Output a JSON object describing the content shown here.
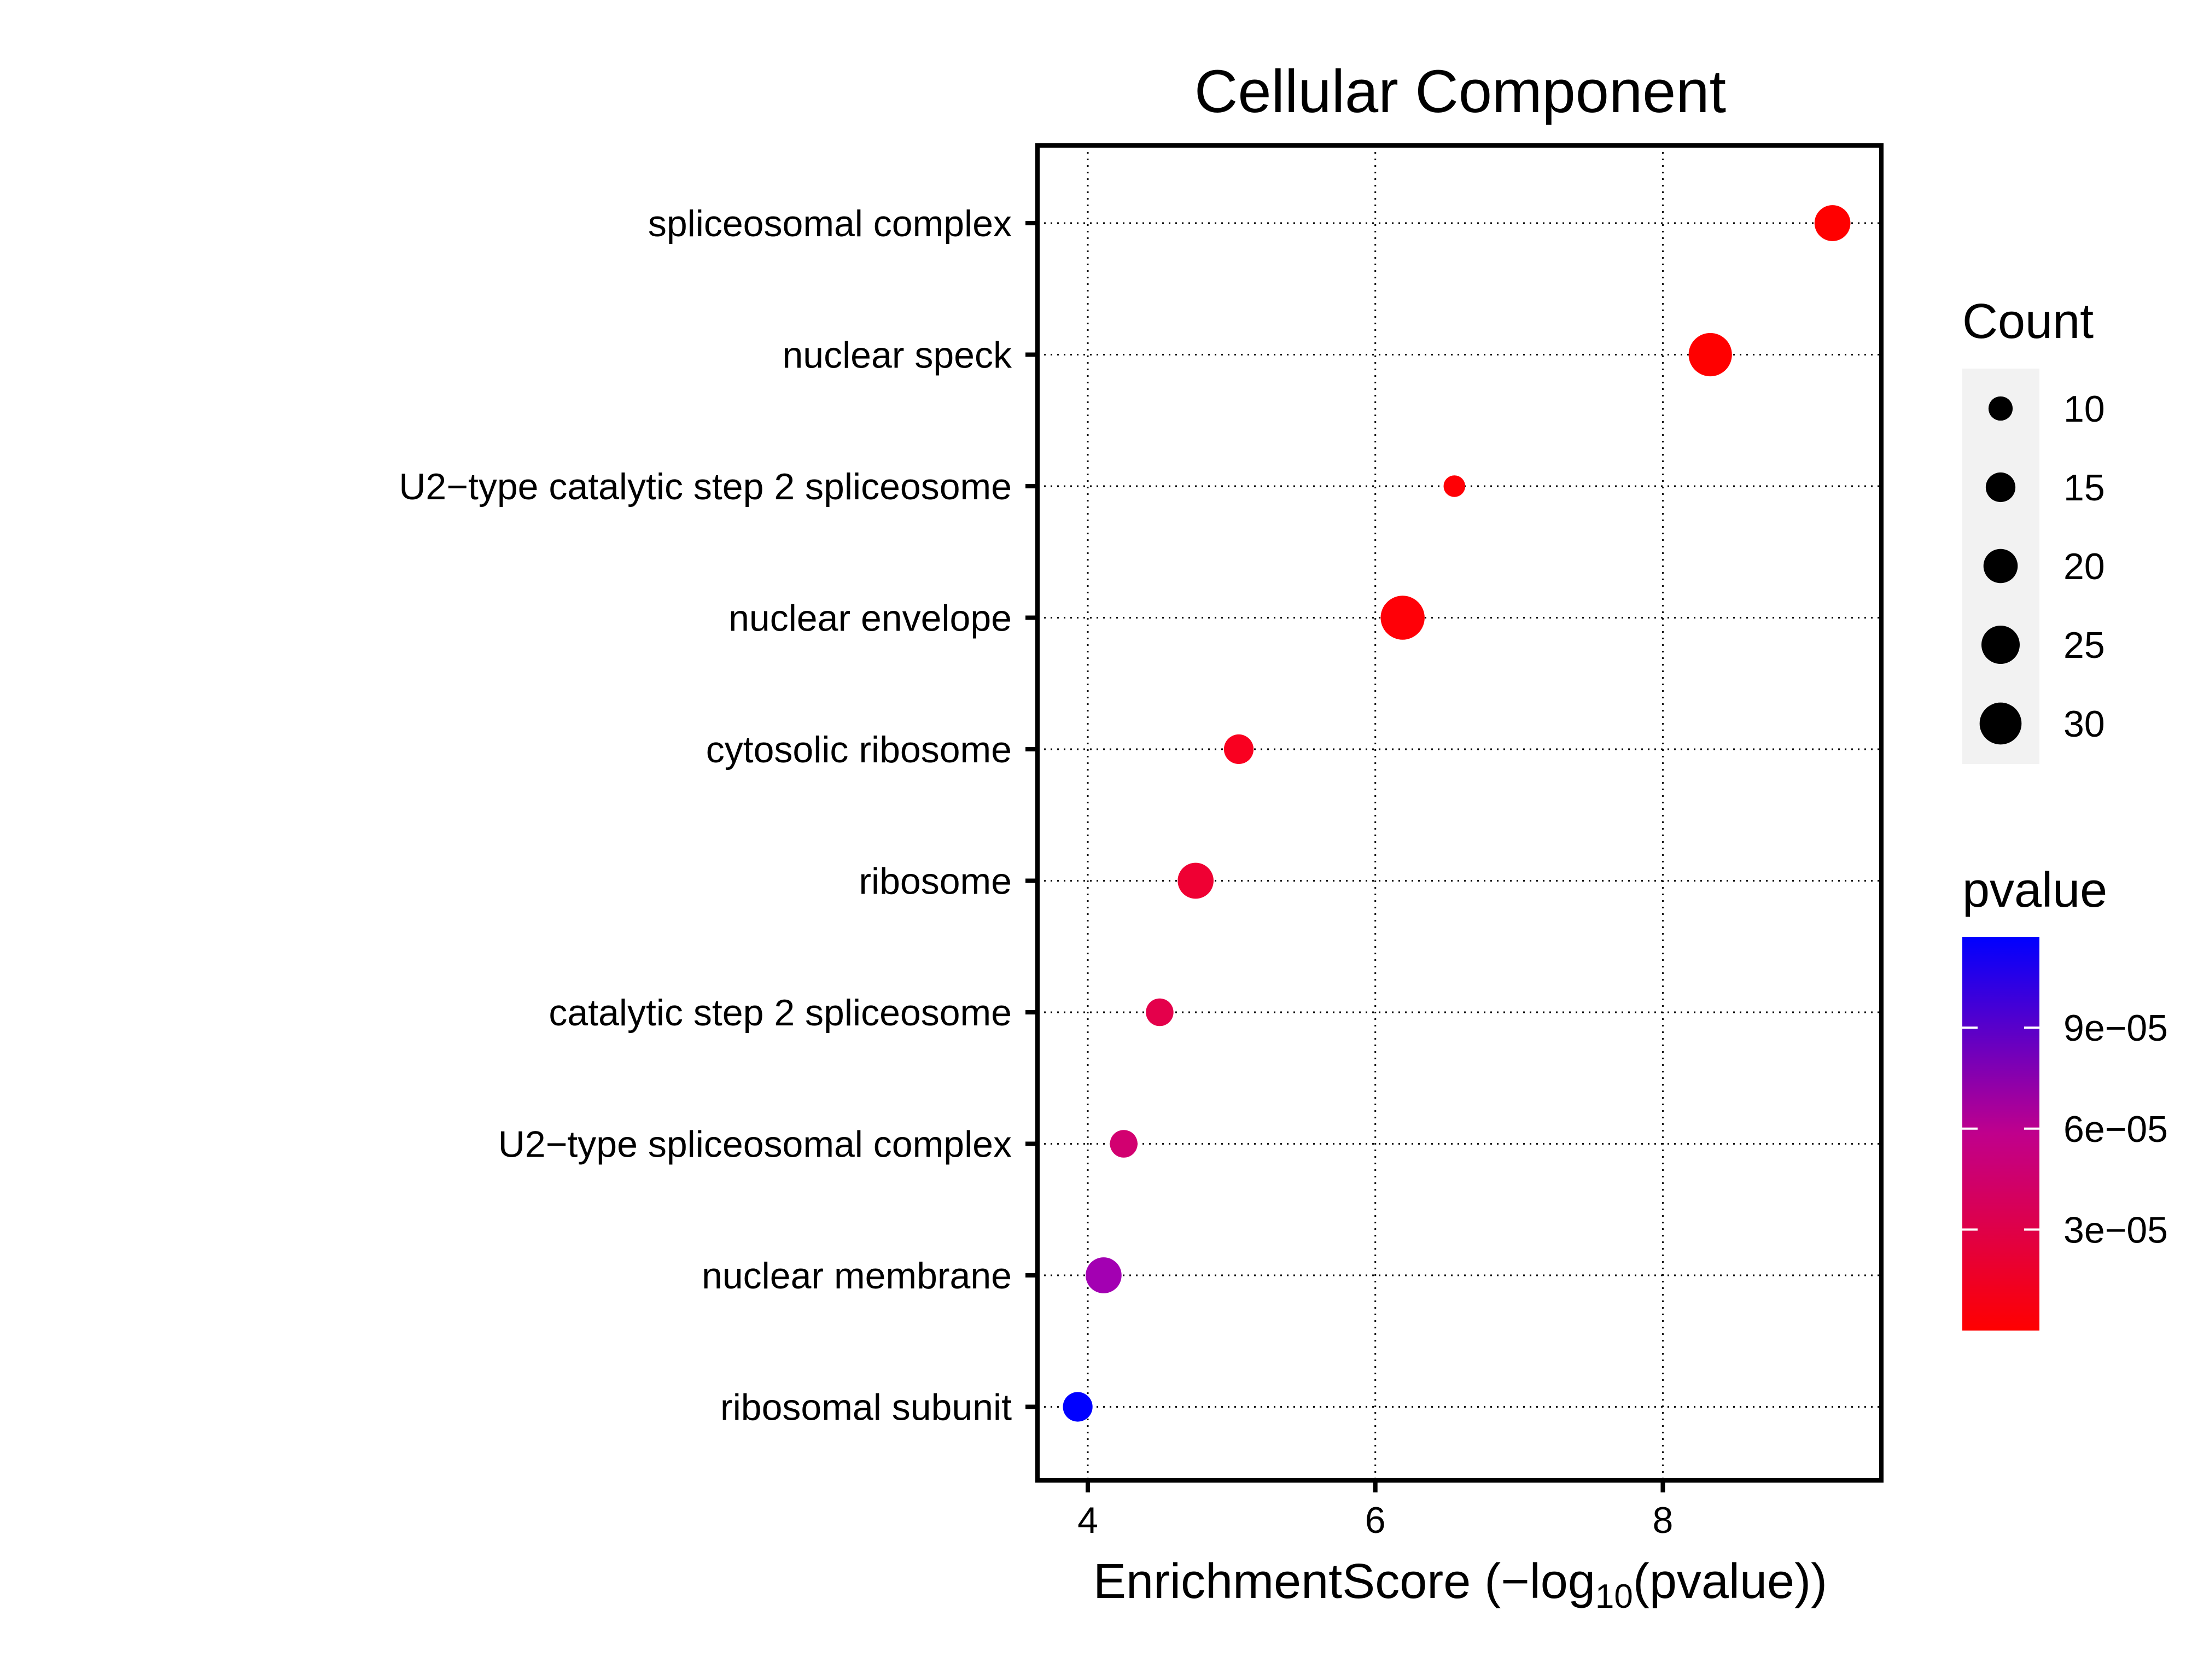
{
  "chart_data": {
    "type": "scatter",
    "title": "Cellular Component",
    "xlabel": {
      "main": "EnrichmentScore (−log",
      "subscript": "10",
      "tail": "(pvalue))"
    },
    "xlim": [
      3.65,
      9.52
    ],
    "xticks": [
      4,
      6,
      8
    ],
    "xtick_labels": [
      "4",
      "6",
      "8"
    ],
    "grid": "dotted",
    "categories": [
      "spliceosomal complex",
      "nuclear speck",
      "U2−type catalytic step 2 spliceosome",
      "nuclear envelope",
      "cytosolic ribosome",
      "ribosome",
      "catalytic step 2 spliceosome",
      "U2−type spliceosomal complex",
      "nuclear membrane",
      "ribosomal subunit"
    ],
    "points": [
      {
        "term": "spliceosomal complex",
        "enrichment": 9.18,
        "count": 22,
        "pvalue": 6.6e-10,
        "color": "#FF0000"
      },
      {
        "term": "nuclear speck",
        "enrichment": 8.33,
        "count": 32,
        "pvalue": 4.7e-09,
        "color": "#FF0000"
      },
      {
        "term": "U2−type catalytic step 2 spliceosome",
        "enrichment": 6.55,
        "count": 8,
        "pvalue": 2.8e-07,
        "color": "#FF0005"
      },
      {
        "term": "nuclear envelope",
        "enrichment": 6.19,
        "count": 33,
        "pvalue": 6.5e-07,
        "color": "#FF0007"
      },
      {
        "term": "cytosolic ribosome",
        "enrichment": 5.05,
        "count": 15,
        "pvalue": 8.9e-06,
        "color": "#F90020"
      },
      {
        "term": "ribosome",
        "enrichment": 4.75,
        "count": 22,
        "pvalue": 1.78e-05,
        "color": "#EF0033"
      },
      {
        "term": "catalytic step 2 spliceosome",
        "enrichment": 4.5,
        "count": 13,
        "pvalue": 3.16e-05,
        "color": "#E4004B"
      },
      {
        "term": "U2−type spliceosomal complex",
        "enrichment": 4.25,
        "count": 13,
        "pvalue": 5.6e-05,
        "color": "#D20070"
      },
      {
        "term": "nuclear membrane",
        "enrichment": 4.11,
        "count": 22,
        "pvalue": 7.8e-05,
        "color": "#A300B2"
      },
      {
        "term": "ribosomal subunit",
        "enrichment": 3.93,
        "count": 15,
        "pvalue": 0.000117,
        "color": "#0000FF"
      }
    ],
    "legend_count": {
      "title": "Count",
      "values": [
        10,
        15,
        20,
        25,
        30
      ],
      "labels": [
        "10",
        "15",
        "20",
        "25",
        "30"
      ]
    },
    "legend_pvalue": {
      "title": "pvalue",
      "range": [
        6.6e-10,
        0.000117
      ],
      "ticks": [
        3e-05,
        6e-05,
        9e-05
      ],
      "tick_labels": [
        "3e−05",
        "6e−05",
        "9e−05"
      ],
      "low_color": "#FF0000",
      "high_color": "#0000FF"
    }
  }
}
